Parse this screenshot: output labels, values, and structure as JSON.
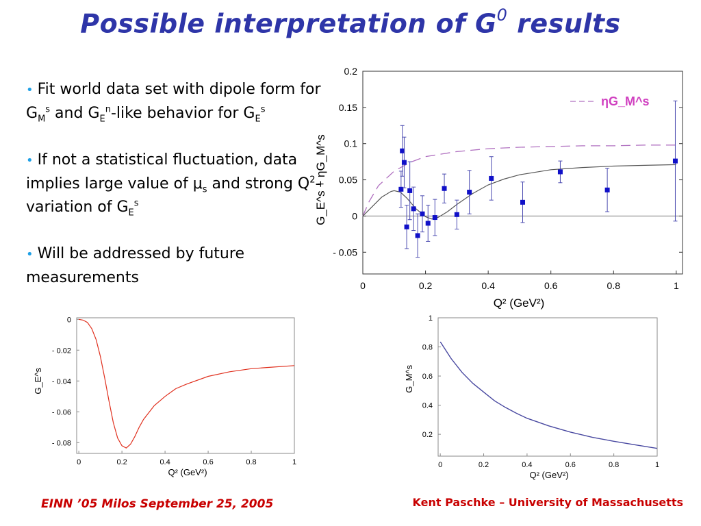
{
  "slide": {
    "title_main": "Possible interpretation of G",
    "title_sup": "0",
    "title_tail": " results",
    "bullets": [
      {
        "segments": [
          {
            "t": "Fit world data set with dipole form for G"
          },
          {
            "sub": "M"
          },
          {
            "sup": "s"
          },
          {
            "t": " and G"
          },
          {
            "sub": "E"
          },
          {
            "sup": "n"
          },
          {
            "t": "-like behavior for G"
          },
          {
            "sub": "E"
          },
          {
            "sup": "s"
          }
        ]
      },
      {
        "segments": [
          {
            "t": "If not a statistical fluctuation, data implies large value of "
          },
          {
            "t": "μ"
          },
          {
            "sub": "s"
          },
          {
            "t": " and strong Q"
          },
          {
            "sup": "2"
          },
          {
            "t": "-variation of G"
          },
          {
            "sub": "E"
          },
          {
            "sup": "s"
          }
        ]
      },
      {
        "segments": [
          {
            "t": "Will be addressed by future measurements"
          }
        ]
      }
    ],
    "footer_left": "EINN ’05  Milos  September 25, 2005",
    "footer_right": "Kent Paschke – University of Massachusetts"
  },
  "colors": {
    "title": "#2e35a8",
    "bullet": "#1fa0e6",
    "footer": "#c80000",
    "data_points": "#1010c8",
    "fit_curve": "#555555",
    "eta_gm_dash": "#b070c0",
    "legend_text": "#d040c0",
    "ge_curve": "#e0301e",
    "gm_curve": "#4848a0"
  },
  "chart_data": [
    {
      "type": "scatter",
      "xlabel": "Q² (GeV²)",
      "ylabel": "G_E^s + ηG_M^s",
      "xlim": [
        0,
        1.02
      ],
      "ylim": [
        -0.08,
        0.2
      ],
      "xticks": [
        "0",
        "0.2",
        "0.4",
        "0.6",
        "0.8",
        "1"
      ],
      "yticks": [
        "0.2",
        "0.15",
        "0.1",
        "0.05",
        "0",
        "- 0.05"
      ],
      "legend": "ηG_M^s",
      "legend_position": "top-right",
      "points": [
        {
          "x": 0.122,
          "y": 0.037,
          "err": 0.025
        },
        {
          "x": 0.126,
          "y": 0.09,
          "err": 0.035
        },
        {
          "x": 0.132,
          "y": 0.074,
          "err": 0.035
        },
        {
          "x": 0.14,
          "y": -0.015,
          "err": 0.03
        },
        {
          "x": 0.15,
          "y": 0.035,
          "err": 0.04
        },
        {
          "x": 0.162,
          "y": 0.01,
          "err": 0.03
        },
        {
          "x": 0.175,
          "y": -0.027,
          "err": 0.03
        },
        {
          "x": 0.19,
          "y": 0.003,
          "err": 0.025
        },
        {
          "x": 0.208,
          "y": -0.01,
          "err": 0.025
        },
        {
          "x": 0.23,
          "y": -0.002,
          "err": 0.025
        },
        {
          "x": 0.26,
          "y": 0.038,
          "err": 0.02
        },
        {
          "x": 0.3,
          "y": 0.002,
          "err": 0.02
        },
        {
          "x": 0.34,
          "y": 0.033,
          "err": 0.03
        },
        {
          "x": 0.41,
          "y": 0.052,
          "err": 0.03
        },
        {
          "x": 0.51,
          "y": 0.019,
          "err": 0.028
        },
        {
          "x": 0.63,
          "y": 0.061,
          "err": 0.015
        },
        {
          "x": 0.78,
          "y": 0.036,
          "err": 0.03
        },
        {
          "x": 0.997,
          "y": 0.076,
          "err": 0.083
        }
      ],
      "fit_curve": [
        [
          0,
          0
        ],
        [
          0.03,
          0.013
        ],
        [
          0.06,
          0.026
        ],
        [
          0.09,
          0.034
        ],
        [
          0.1,
          0.035
        ],
        [
          0.12,
          0.033
        ],
        [
          0.14,
          0.025
        ],
        [
          0.17,
          0.01
        ],
        [
          0.2,
          -0.001
        ],
        [
          0.22,
          -0.004
        ],
        [
          0.24,
          -0.002
        ],
        [
          0.27,
          0.006
        ],
        [
          0.3,
          0.016
        ],
        [
          0.35,
          0.031
        ],
        [
          0.4,
          0.043
        ],
        [
          0.45,
          0.051
        ],
        [
          0.5,
          0.057
        ],
        [
          0.6,
          0.064
        ],
        [
          0.7,
          0.067
        ],
        [
          0.8,
          0.069
        ],
        [
          0.9,
          0.07
        ],
        [
          1.0,
          0.071
        ]
      ],
      "eta_gm_curve": [
        [
          0,
          0
        ],
        [
          0.02,
          0.02
        ],
        [
          0.05,
          0.042
        ],
        [
          0.1,
          0.062
        ],
        [
          0.15,
          0.074
        ],
        [
          0.2,
          0.082
        ],
        [
          0.3,
          0.089
        ],
        [
          0.4,
          0.093
        ],
        [
          0.5,
          0.095
        ],
        [
          0.6,
          0.096
        ],
        [
          0.7,
          0.097
        ],
        [
          0.8,
          0.097
        ],
        [
          0.9,
          0.098
        ],
        [
          1.0,
          0.098
        ]
      ]
    },
    {
      "type": "line",
      "xlabel": "Q² (GeV²)",
      "ylabel": "G_E^s",
      "xlim": [
        -0.01,
        1.0
      ],
      "ylim": [
        -0.087,
        0.001
      ],
      "xticks": [
        "0",
        "0.2",
        "0.4",
        "0.6",
        "0.8",
        "1"
      ],
      "yticks": [
        "0",
        "- 0.02",
        "- 0.04",
        "- 0.06",
        "- 0.08"
      ],
      "curve": [
        [
          0,
          0
        ],
        [
          0.02,
          -0.0005
        ],
        [
          0.04,
          -0.002
        ],
        [
          0.06,
          -0.006
        ],
        [
          0.08,
          -0.013
        ],
        [
          0.1,
          -0.024
        ],
        [
          0.12,
          -0.038
        ],
        [
          0.14,
          -0.053
        ],
        [
          0.16,
          -0.067
        ],
        [
          0.18,
          -0.077
        ],
        [
          0.2,
          -0.082
        ],
        [
          0.22,
          -0.0835
        ],
        [
          0.24,
          -0.081
        ],
        [
          0.26,
          -0.076
        ],
        [
          0.28,
          -0.07
        ],
        [
          0.3,
          -0.065
        ],
        [
          0.35,
          -0.056
        ],
        [
          0.4,
          -0.05
        ],
        [
          0.45,
          -0.045
        ],
        [
          0.5,
          -0.042
        ],
        [
          0.6,
          -0.037
        ],
        [
          0.7,
          -0.034
        ],
        [
          0.8,
          -0.032
        ],
        [
          0.9,
          -0.031
        ],
        [
          1.0,
          -0.03
        ]
      ]
    },
    {
      "type": "line",
      "xlabel": "Q² (GeV²)",
      "ylabel": "G_M^s",
      "xlim": [
        -0.01,
        1.0
      ],
      "ylim": [
        0.05,
        1.0
      ],
      "xticks": [
        "0",
        "0.2",
        "0.4",
        "0.6",
        "0.8",
        "1"
      ],
      "yticks": [
        "1",
        "0.8",
        "0.6",
        "0.4",
        "0.2"
      ],
      "curve": [
        [
          0,
          0.835
        ],
        [
          0.05,
          0.72
        ],
        [
          0.1,
          0.625
        ],
        [
          0.15,
          0.55
        ],
        [
          0.2,
          0.49
        ],
        [
          0.25,
          0.43
        ],
        [
          0.3,
          0.385
        ],
        [
          0.35,
          0.345
        ],
        [
          0.4,
          0.31
        ],
        [
          0.5,
          0.258
        ],
        [
          0.6,
          0.215
        ],
        [
          0.7,
          0.18
        ],
        [
          0.8,
          0.152
        ],
        [
          0.9,
          0.127
        ],
        [
          1.0,
          0.103
        ]
      ]
    }
  ]
}
